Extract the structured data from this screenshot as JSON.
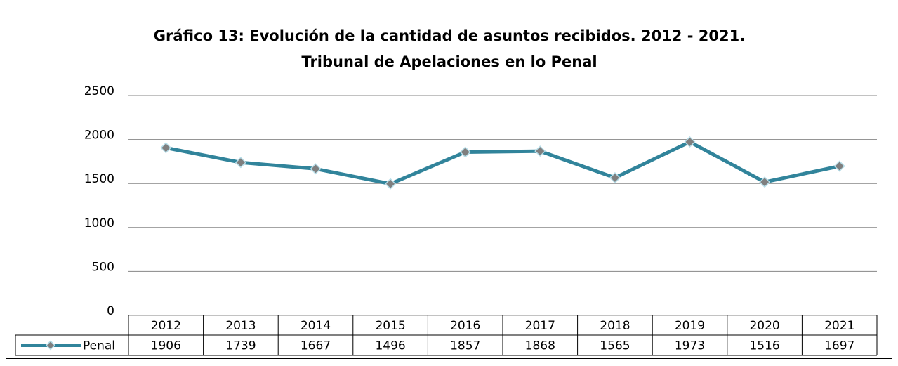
{
  "chart_data": {
    "type": "line",
    "title": "Gráfico 13: Evolución de la cantidad de asuntos recibidos. 2012 - 2021.",
    "subtitle": "Tribunal de Apelaciones en lo Penal",
    "categories": [
      "2012",
      "2013",
      "2014",
      "2015",
      "2016",
      "2017",
      "2018",
      "2019",
      "2020",
      "2021"
    ],
    "series": [
      {
        "name": "Penal",
        "color": "#31849b",
        "marker_color": "#7f7f7f",
        "values": [
          1906,
          1739,
          1667,
          1496,
          1857,
          1868,
          1565,
          1973,
          1516,
          1697
        ]
      }
    ],
    "ylim": [
      0,
      2500
    ],
    "yticks": [
      0,
      500,
      1000,
      1500,
      2000,
      2500
    ],
    "grid": true,
    "data_table": true
  }
}
